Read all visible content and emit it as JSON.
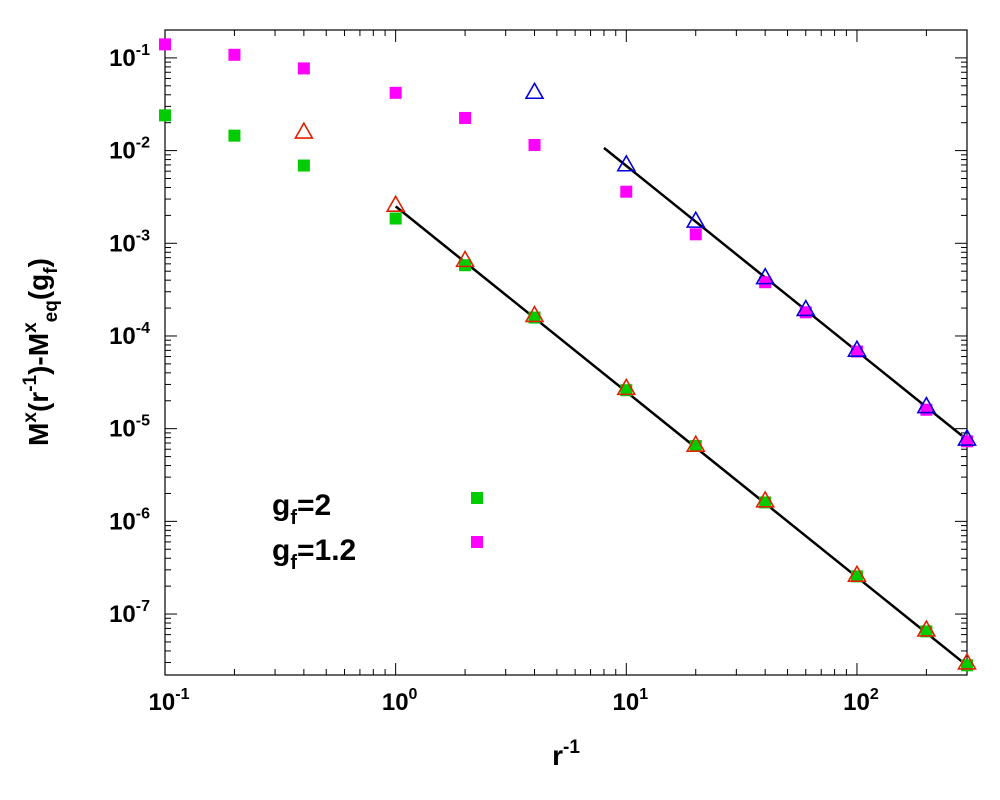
{
  "chart_data": {
    "type": "scatter",
    "title": "",
    "xscale": "log",
    "yscale": "log",
    "xlim": [
      0.1,
      300
    ],
    "ylim": [
      2.2e-08,
      0.2
    ],
    "grid": false,
    "legend_placement": "bottom-left",
    "xlabel": {
      "base": "r",
      "sup": "-1"
    },
    "ylabel": {
      "parts": [
        {
          "t": "M",
          "s": "n"
        },
        {
          "t": "x",
          "s": "sup"
        },
        {
          "t": "(r",
          "s": "n"
        },
        {
          "t": "-1",
          "s": "sup"
        },
        {
          "t": ")-M",
          "s": "n"
        },
        {
          "t": "x",
          "s": "sup"
        },
        {
          "t": "eq",
          "s": "sub"
        },
        {
          "t": "(g",
          "s": "n"
        },
        {
          "t": "f",
          "s": "sub"
        },
        {
          "t": ")",
          "s": "n"
        }
      ]
    },
    "xticks": [
      {
        "value": 0.1,
        "base": "10",
        "exp": "-1"
      },
      {
        "value": 1,
        "base": "10",
        "exp": "0"
      },
      {
        "value": 10,
        "base": "10",
        "exp": "1"
      },
      {
        "value": 100,
        "base": "10",
        "exp": "2"
      }
    ],
    "yticks": [
      {
        "value": 1e-07,
        "base": "10",
        "exp": "-7"
      },
      {
        "value": 1e-06,
        "base": "10",
        "exp": "-6"
      },
      {
        "value": 1e-05,
        "base": "10",
        "exp": "-5"
      },
      {
        "value": 0.0001,
        "base": "10",
        "exp": "-4"
      },
      {
        "value": 0.001,
        "base": "10",
        "exp": "-3"
      },
      {
        "value": 0.01,
        "base": "10",
        "exp": "-2"
      },
      {
        "value": 0.1,
        "base": "10",
        "exp": "-1"
      }
    ],
    "series": [
      {
        "name": "g_f=2",
        "marker": "square-filled",
        "color": "#00cc00",
        "x": [
          0.1,
          0.2,
          0.4,
          1,
          2,
          4,
          10,
          20,
          40,
          100,
          200,
          300
        ],
        "y": [
          0.024,
          0.0145,
          0.0069,
          0.00185,
          0.00058,
          0.000158,
          2.6e-05,
          6.5e-06,
          1.6e-06,
          2.55e-07,
          6.5e-08,
          2.8e-08
        ]
      },
      {
        "name": "g_f=1.2",
        "marker": "square-filled",
        "color": "#ff00ff",
        "x": [
          0.1,
          0.2,
          0.4,
          1,
          2,
          4,
          10,
          20,
          40,
          60,
          100,
          200,
          300
        ],
        "y": [
          0.14,
          0.108,
          0.077,
          0.042,
          0.0225,
          0.0115,
          0.0036,
          0.00125,
          0.00038,
          0.00018,
          6.8e-05,
          1.6e-05,
          7.3e-06
        ]
      },
      {
        "name": "",
        "marker": "triangle-open",
        "color": "#dd2200",
        "x": [
          0.4,
          1,
          2,
          4,
          10,
          20,
          40,
          100,
          200,
          300
        ],
        "y": [
          0.016,
          0.0026,
          0.00066,
          0.000168,
          2.75e-05,
          6.7e-06,
          1.68e-06,
          2.65e-07,
          6.8e-08,
          3e-08
        ]
      },
      {
        "name": "",
        "marker": "triangle-open",
        "color": "#0000dd",
        "x": [
          4,
          10,
          20,
          40,
          60,
          100,
          200,
          300
        ],
        "y": [
          0.043,
          0.0071,
          0.00175,
          0.00043,
          0.000195,
          7.1e-05,
          1.75e-05,
          7.8e-06
        ]
      }
    ],
    "fit_lines": [
      {
        "x": [
          1,
          300
        ],
        "y": [
          0.0025,
          2.78e-08
        ],
        "color": "#000000"
      },
      {
        "x": [
          8,
          300
        ],
        "y": [
          0.0107,
          7.6e-06
        ],
        "color": "#000000"
      }
    ],
    "legend": [
      {
        "base": "g",
        "sub": "f",
        "rest": "=2",
        "series_index": 0
      },
      {
        "base": "g",
        "sub": "f",
        "rest": "=1.2",
        "series_index": 1
      }
    ]
  }
}
